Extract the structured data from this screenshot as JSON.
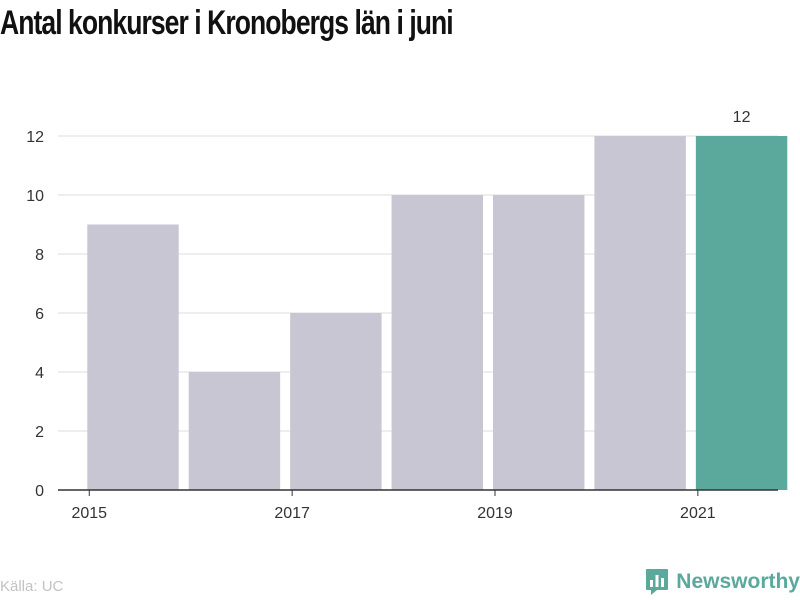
{
  "title": "Antal konkurser i Kronobergs län i juni",
  "source": "Källa: UC",
  "brand": {
    "name": "Newsworthy",
    "icon": "bar-chart-bubble-icon"
  },
  "colors": {
    "bar": "#c8c6d2",
    "highlight": "#5ba89d",
    "grid": "#dddddd",
    "axis": "#333333",
    "text": "#333333",
    "source": "#c2c2c2",
    "title": "#111111"
  },
  "chart_data": {
    "type": "bar",
    "categories": [
      "2015",
      "2016",
      "2017",
      "2018",
      "2019",
      "2020",
      "2021"
    ],
    "values": [
      9,
      4,
      6,
      10,
      10,
      12,
      12
    ],
    "highlight_index": 6,
    "x_tick_labels": [
      "2015",
      "2017",
      "2019",
      "2021"
    ],
    "y_ticks": [
      0,
      2,
      4,
      6,
      8,
      10,
      12
    ],
    "ylim": [
      0,
      12
    ],
    "grid": true,
    "data_labels": [
      {
        "index": 6,
        "text": "12"
      }
    ],
    "title": "Antal konkurser i Kronobergs län i juni",
    "xlabel": "",
    "ylabel": ""
  }
}
